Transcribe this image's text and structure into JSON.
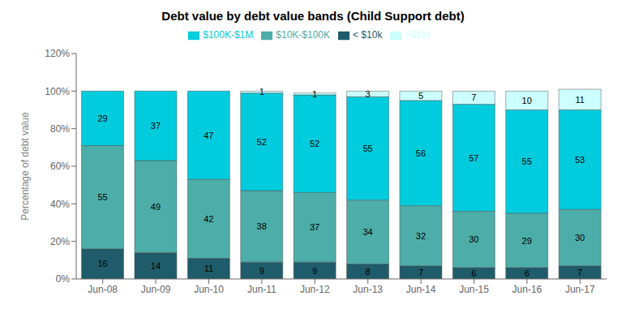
{
  "chart_data": {
    "type": "bar",
    "stacked": true,
    "title": "Debt value by debt value bands (Child Support debt)",
    "ylabel": "Percentage of debt value",
    "categories": [
      "Jun-08",
      "Jun-09",
      "Jun-10",
      "Jun-11",
      "Jun-12",
      "Jun-13",
      "Jun-14",
      "Jun-15",
      "Jun-16",
      "Jun-17"
    ],
    "series": [
      {
        "name": "< $10k",
        "color": "#1F5C6B",
        "values": [
          16,
          14,
          11,
          9,
          9,
          8,
          7,
          6,
          6,
          7
        ]
      },
      {
        "name": "$10K-$100K",
        "color": "#4DADA8",
        "values": [
          55,
          49,
          42,
          38,
          37,
          34,
          32,
          30,
          29,
          30
        ]
      },
      {
        "name": "$100K-$1M",
        "color": "#00CCDD",
        "values": [
          29,
          37,
          47,
          52,
          52,
          55,
          56,
          57,
          55,
          53
        ]
      },
      {
        "name": ">$1M",
        "color": "#CCFFFF",
        "values": [
          0,
          0,
          0,
          1,
          1,
          3,
          5,
          7,
          10,
          11
        ]
      }
    ],
    "ylim": [
      0,
      120
    ],
    "yticks": [
      {
        "value": 0,
        "label": "0%"
      },
      {
        "value": 20,
        "label": "20%"
      },
      {
        "value": 40,
        "label": "40%"
      },
      {
        "value": 60,
        "label": "60%"
      },
      {
        "value": 80,
        "label": "80%"
      },
      {
        "value": 100,
        "label": "100%"
      },
      {
        "value": 120,
        "label": "120%"
      }
    ],
    "data_labels": true,
    "legend": "top",
    "grid": false
  }
}
